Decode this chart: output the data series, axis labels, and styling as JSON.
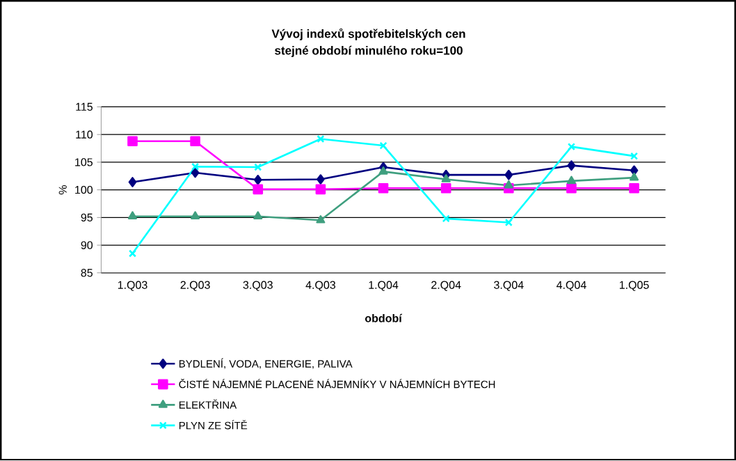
{
  "chart_data": {
    "type": "line",
    "title": "Vývoj indexů spotřebitelských cen",
    "subtitle": "stejné období minulého roku=100",
    "xlabel": "období",
    "ylabel": "%",
    "categories": [
      "1.Q03",
      "2.Q03",
      "3.Q03",
      "4.Q03",
      "1.Q04",
      "2.Q04",
      "3.Q04",
      "4.Q04",
      "1.Q05"
    ],
    "ylim": [
      85,
      115
    ],
    "yticks": [
      85,
      90,
      95,
      100,
      105,
      110,
      115
    ],
    "grid": "y",
    "legend": "bottom",
    "line_style": "solid",
    "series": [
      {
        "name": "BYDLENÍ, VODA, ENERGIE, PALIVA",
        "color": "#000080",
        "marker": "diamond",
        "values": [
          101.4,
          103.1,
          101.8,
          101.9,
          104.1,
          102.7,
          102.7,
          104.4,
          103.5
        ]
      },
      {
        "name": "ČISTÉ NÁJEMNÉ PLACENÉ NÁJEMNÍKY V NÁJEMNÍCH BYTECH",
        "color": "#ff00ff",
        "marker": "square",
        "values": [
          108.8,
          108.8,
          100.1,
          100.1,
          100.3,
          100.3,
          100.3,
          100.3,
          100.3
        ]
      },
      {
        "name": "ELEKTŘINA",
        "color": "#3f9f7f",
        "marker": "triangle",
        "values": [
          95.2,
          95.2,
          95.2,
          94.5,
          103.3,
          101.9,
          100.8,
          101.6,
          102.2
        ]
      },
      {
        "name": "PLYN ZE SÍTĚ",
        "color": "#00ffff",
        "marker": "cross",
        "values": [
          88.5,
          104.2,
          104.1,
          109.2,
          108.0,
          94.8,
          94.1,
          107.8,
          106.1
        ]
      }
    ]
  }
}
